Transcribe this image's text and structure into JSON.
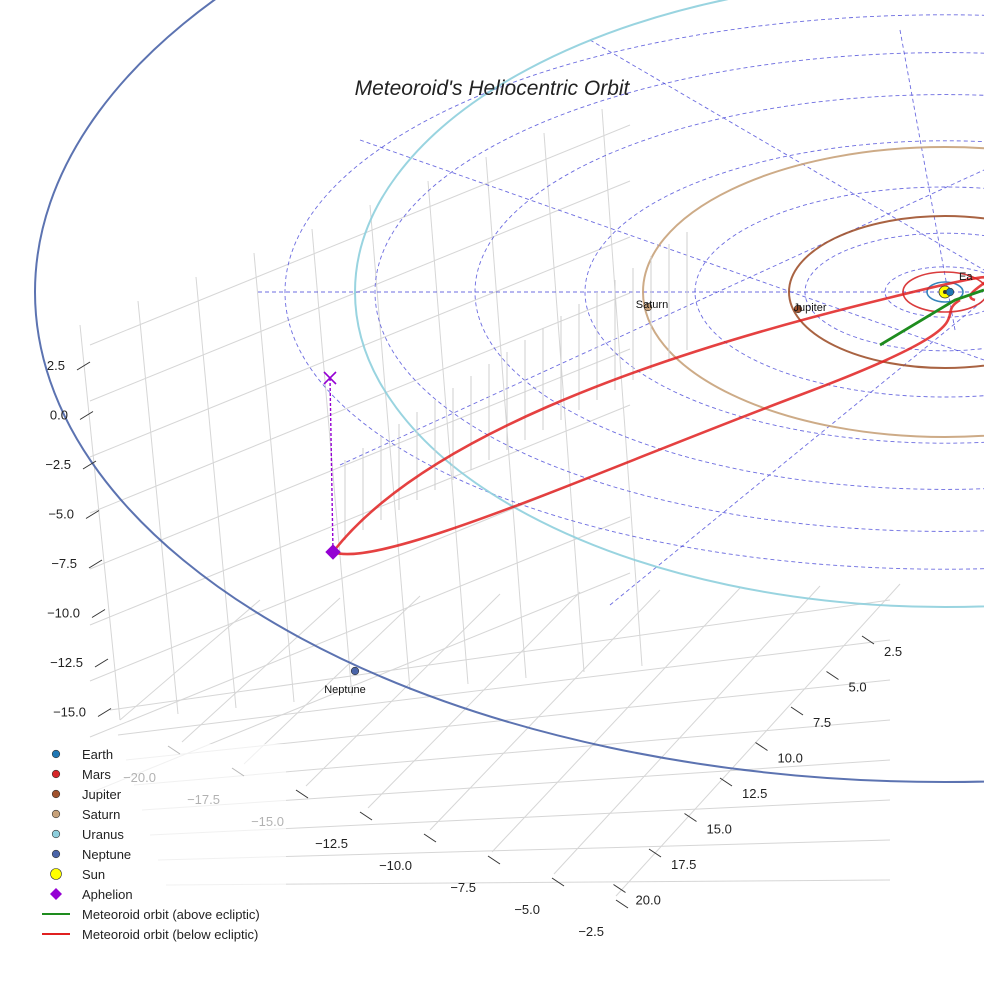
{
  "chart_data": {
    "type": "line3d",
    "title": "Meteoroid's Heliocentric Orbit",
    "axes": {
      "x": {
        "ticks": [
          "−20.0",
          "−17.5",
          "−15.0",
          "−12.5",
          "−10.0",
          "−7.5",
          "−5.0",
          "−2.5"
        ],
        "range": [
          -20.0,
          -2.5
        ]
      },
      "y": {
        "ticks": [
          "2.5",
          "5.0",
          "7.5",
          "10.0",
          "12.5",
          "15.0",
          "17.5",
          "20.0"
        ],
        "range": [
          2.5,
          20.0
        ]
      },
      "z": {
        "ticks": [
          "2.5",
          "0.0",
          "−2.5",
          "−5.0",
          "−7.5",
          "−10.0",
          "−12.5",
          "−15.0"
        ],
        "range": [
          -15.0,
          2.5
        ]
      }
    },
    "planets": [
      {
        "name": "Earth",
        "label": "Ea",
        "color": "#1f77b4",
        "orbit_au": 1.0
      },
      {
        "name": "Mars",
        "label": "",
        "color": "#d62728",
        "orbit_au": 1.52
      },
      {
        "name": "Jupiter",
        "label": "Jupiter",
        "color": "#a0522d",
        "orbit_au": 5.2
      },
      {
        "name": "Saturn",
        "label": "Saturn",
        "color": "#c8a27a",
        "orbit_au": 9.54
      },
      {
        "name": "Uranus",
        "label": "",
        "color": "#8ecfdd",
        "orbit_au": 19.2
      },
      {
        "name": "Neptune",
        "label": "Neptune",
        "color": "#4a64a8",
        "orbit_au": 30.1
      }
    ],
    "sun": {
      "name": "Sun",
      "color": "#ffff00"
    },
    "aphelion": {
      "name": "Aphelion",
      "color": "#9400d3",
      "distance_au": 20.0
    },
    "series": [
      {
        "name": "Meteoroid orbit (above ecliptic)",
        "color": "#1e8c1e"
      },
      {
        "name": "Meteoroid orbit (below ecliptic)",
        "color": "#e02020"
      }
    ],
    "legend": [
      {
        "label": "Earth",
        "symbol": "circle",
        "color": "#1f77b4"
      },
      {
        "label": "Mars",
        "symbol": "circle",
        "color": "#d62728"
      },
      {
        "label": "Jupiter",
        "symbol": "circle",
        "color": "#a0522d"
      },
      {
        "label": "Saturn",
        "symbol": "circle",
        "color": "#c8a27a"
      },
      {
        "label": "Uranus",
        "symbol": "circle",
        "color": "#8ecfdd"
      },
      {
        "label": "Neptune",
        "symbol": "circle",
        "color": "#4a64a8"
      },
      {
        "label": "Sun",
        "symbol": "circle-large",
        "color": "#ffff00"
      },
      {
        "label": "Aphelion",
        "symbol": "diamond",
        "color": "#9400d3"
      },
      {
        "label": "Meteoroid orbit (above ecliptic)",
        "symbol": "line",
        "color": "#1e8c1e"
      },
      {
        "label": "Meteoroid orbit (below ecliptic)",
        "symbol": "line",
        "color": "#e02020"
      }
    ],
    "legend_placement": "bottom-left"
  }
}
